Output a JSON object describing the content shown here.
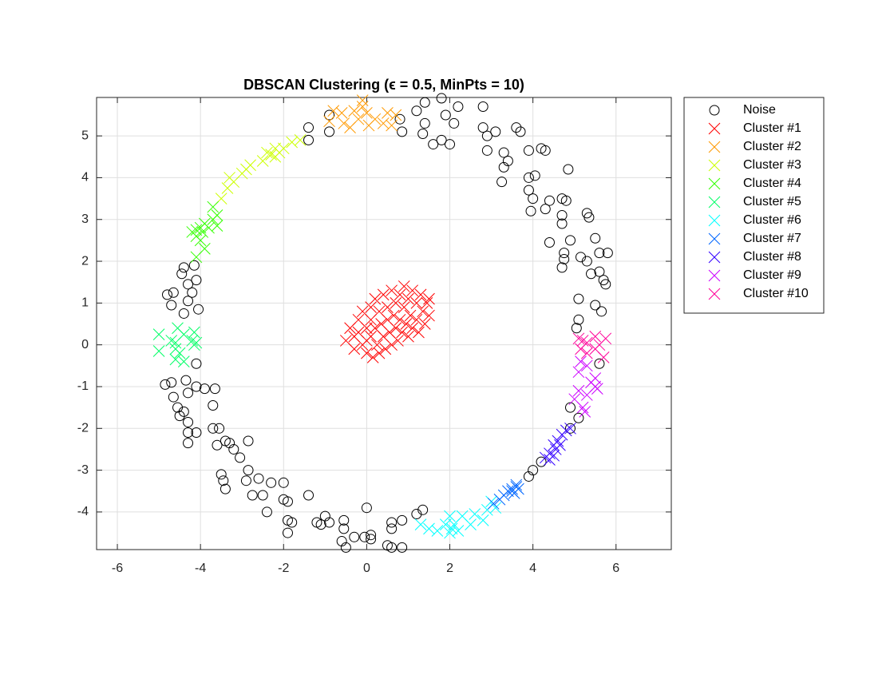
{
  "chart_data": {
    "type": "scatter",
    "title": "DBSCAN Clustering (ϵ = 0.5, MinPts = 10)",
    "xlim": [
      -6.5,
      7.33
    ],
    "ylim": [
      -4.9,
      5.92
    ],
    "xticks": [
      -6,
      -4,
      -2,
      0,
      2,
      4,
      6
    ],
    "yticks": [
      -4,
      -3,
      -2,
      -1,
      0,
      1,
      2,
      3,
      4,
      5
    ],
    "grid": true,
    "legend": "outside-right",
    "series": [
      {
        "name": "Noise",
        "color": "#000000",
        "marker": "o",
        "x": [
          -0.9,
          -0.9,
          -1.4,
          -1.4,
          0.8,
          0.85,
          1.2,
          1.4,
          1.4,
          1.35,
          1.6,
          1.8,
          1.9,
          1.8,
          2.0,
          2.1,
          2.2,
          2.8,
          2.8,
          2.9,
          2.9,
          3.1,
          3.3,
          3.4,
          3.3,
          3.25,
          3.6,
          3.7,
          3.9,
          4.2,
          4.3,
          3.9,
          4.05,
          3.9,
          4.0,
          3.95,
          4.3,
          4.4,
          4.4,
          4.7,
          4.8,
          4.7,
          4.7,
          4.85,
          4.9,
          4.75,
          4.75,
          4.7,
          5.3,
          5.35,
          5.5,
          5.6,
          5.15,
          5.3,
          5.8,
          5.4,
          5.6,
          5.7,
          5.75,
          5.1,
          5.5,
          5.65,
          5.1,
          5.05,
          5.6,
          4.9,
          5.1,
          4.9,
          4.2,
          4.0,
          3.9,
          1.2,
          1.35,
          0.6,
          0.6,
          0.5,
          0.6,
          0.85,
          0.85,
          0,
          -0.05,
          0.1,
          0.1,
          -0.3,
          -0.55,
          -0.6,
          -0.5,
          -0.55,
          -0.9,
          -1.0,
          -1.1,
          -1.2,
          -1.4,
          -1.8,
          -1.9,
          -1.9,
          -1.9,
          -2.0,
          -2.0,
          -2.3,
          -2.4,
          -2.5,
          -2.6,
          -2.75,
          -2.9,
          -2.85,
          -3.5,
          -3.45,
          -3.4,
          -3.05,
          -2.85,
          -3.2,
          -3.3,
          -3.4,
          -3.55,
          -3.6,
          -3.7,
          -3.7,
          -3.65,
          -3.9,
          -4.1,
          -4.35,
          -4.3,
          -4.5,
          -4.4,
          -4.3,
          -4.3,
          -4.1,
          -4.3,
          -4.55,
          -4.65,
          -4.7,
          -4.85,
          -4.1,
          -4.4,
          -4.45,
          -4.3,
          -4.2,
          -4.1,
          -4.3,
          -4.05,
          -4.4,
          -4.65,
          -4.8,
          -4.7,
          -4.15
        ],
        "values": [
          5.5,
          5.1,
          5.2,
          4.9,
          5.4,
          5.1,
          5.6,
          5.8,
          5.3,
          5.05,
          4.8,
          5.9,
          5.5,
          4.9,
          4.8,
          5.3,
          5.7,
          5.7,
          5.2,
          5.0,
          4.65,
          5.1,
          4.6,
          4.4,
          4.25,
          3.9,
          5.2,
          5.1,
          4.65,
          4.7,
          4.65,
          4.0,
          4.05,
          3.7,
          3.5,
          3.2,
          3.25,
          3.45,
          2.45,
          3.5,
          3.45,
          3.1,
          2.9,
          4.2,
          2.5,
          2.2,
          2.05,
          1.85,
          3.15,
          3.05,
          2.55,
          2.2,
          2.1,
          2.0,
          2.2,
          1.7,
          1.75,
          1.55,
          1.45,
          1.1,
          0.95,
          0.8,
          0.6,
          0.4,
          -0.45,
          -1.5,
          -1.75,
          -2.0,
          -2.8,
          -3.0,
          -3.15,
          -4.05,
          -3.95,
          -4.25,
          -4.4,
          -4.8,
          -4.85,
          -4.2,
          -4.85,
          -3.9,
          -4.6,
          -4.55,
          -4.65,
          -4.6,
          -4.4,
          -4.7,
          -4.85,
          -4.2,
          -4.25,
          -4.1,
          -4.3,
          -4.25,
          -3.6,
          -4.25,
          -4.5,
          -4.2,
          -3.75,
          -3.7,
          -3.3,
          -3.3,
          -4.0,
          -3.6,
          -3.2,
          -3.6,
          -3.25,
          -3.0,
          -3.1,
          -3.25,
          -3.45,
          -2.7,
          -2.3,
          -2.5,
          -2.35,
          -2.3,
          -2.0,
          -2.4,
          -2.0,
          -1.45,
          -1.05,
          -1.05,
          -1.0,
          -0.85,
          -1.15,
          -1.7,
          -1.6,
          -1.85,
          -2.1,
          -2.1,
          -2.35,
          -1.5,
          -1.25,
          -0.9,
          -0.95,
          -0.45,
          1.85,
          1.7,
          1.45,
          1.25,
          1.55,
          1.05,
          0.85,
          0.75,
          1.25,
          1.2,
          0.95,
          1.9
        ]
      },
      {
        "name": "Cluster #1",
        "color": "#ff0000",
        "marker": "x",
        "x": [
          -0.5,
          -0.4,
          -0.3,
          -0.3,
          -0.2,
          -0.2,
          -0.1,
          -0.1,
          0,
          0,
          0,
          0.1,
          0.1,
          0.1,
          0.15,
          0.2,
          0.2,
          0.25,
          0.3,
          0.3,
          0.35,
          0.4,
          0.4,
          0.45,
          0.5,
          0.5,
          0.55,
          0.6,
          0.6,
          0.65,
          0.7,
          0.7,
          0.75,
          0.8,
          0.8,
          0.85,
          0.9,
          0.9,
          0.95,
          1.0,
          1.0,
          1.05,
          1.1,
          1.1,
          1.2,
          1.2,
          1.25,
          1.3,
          1.35,
          1.4,
          1.45,
          1.5,
          1.5
        ],
        "values": [
          0.1,
          0.4,
          0.2,
          -0.1,
          0.6,
          0.3,
          0.0,
          0.8,
          0.4,
          0.1,
          -0.2,
          0.9,
          0.6,
          0.2,
          -0.3,
          1.1,
          0.4,
          0,
          0.8,
          -0.2,
          0.5,
          1.2,
          0.2,
          -0.1,
          0.9,
          0.6,
          0.3,
          1.3,
          0,
          0.7,
          1.0,
          0.4,
          0.1,
          1.2,
          0.6,
          0.3,
          1.4,
          0.9,
          0.5,
          1.1,
          0.2,
          0.7,
          1.3,
          0.4,
          1.0,
          0.6,
          0.3,
          1.2,
          0.8,
          0.5,
          1.0,
          0.7,
          1.1
        ]
      },
      {
        "name": "Cluster #2",
        "color": "#ff9900",
        "marker": "x",
        "x": [
          -0.9,
          -0.8,
          -0.6,
          -0.55,
          -0.4,
          -0.3,
          -0.2,
          -0.1,
          0,
          0.05,
          0.2,
          0.4,
          0.5,
          0.7,
          0.6,
          -0.1
        ],
        "values": [
          5.35,
          5.6,
          5.55,
          5.3,
          5.2,
          5.6,
          5.4,
          5.7,
          5.55,
          5.25,
          5.4,
          5.3,
          5.55,
          5.5,
          5.25,
          5.85
        ]
      },
      {
        "name": "Cluster #3",
        "color": "#ccff00",
        "marker": "x",
        "x": [
          -1.6,
          -1.8,
          -2.0,
          -2.1,
          -2.2,
          -2.3,
          -2.4,
          -2.5,
          -2.8,
          -2.9,
          -3.0,
          -3.2,
          -3.35,
          -3.5,
          -3.3,
          -2.2
        ],
        "values": [
          4.9,
          4.85,
          4.7,
          4.6,
          4.7,
          4.55,
          4.6,
          4.4,
          4.3,
          4.2,
          4.1,
          3.9,
          3.75,
          3.5,
          4.0,
          4.5
        ]
      },
      {
        "name": "Cluster #4",
        "color": "#33ff00",
        "marker": "x",
        "x": [
          -3.7,
          -3.6,
          -3.7,
          -3.6,
          -3.8,
          -3.9,
          -3.95,
          -4.0,
          -4.1,
          -4.1,
          -4.2,
          -4.0,
          -3.9,
          -4.1
        ],
        "values": [
          3.3,
          3.1,
          3.0,
          2.85,
          2.8,
          2.9,
          2.7,
          2.8,
          2.6,
          2.75,
          2.7,
          2.5,
          2.3,
          2.1
        ]
      },
      {
        "name": "Cluster #5",
        "color": "#00ff66",
        "marker": "x",
        "x": [
          -5.0,
          -5.0,
          -4.7,
          -4.6,
          -4.55,
          -4.5,
          -4.6,
          -4.4,
          -4.4,
          -4.2,
          -4.15,
          -4.15,
          -4.1,
          -4.6
        ],
        "values": [
          0.25,
          -0.15,
          0.1,
          0.05,
          0.4,
          -0.2,
          -0.35,
          -0.4,
          0.25,
          0.1,
          0.3,
          0,
          0.05,
          -0.1
        ]
      },
      {
        "name": "Cluster #6",
        "color": "#00ffff",
        "marker": "x",
        "x": [
          1.3,
          1.5,
          1.7,
          1.9,
          2.0,
          2.0,
          2.1,
          2.2,
          2.3,
          2.5,
          2.6,
          2.8,
          2.9,
          3.0,
          3.1,
          2.05
        ],
        "values": [
          -4.3,
          -4.4,
          -4.45,
          -4.3,
          -4.5,
          -4.1,
          -4.3,
          -4.45,
          -4.1,
          -4.3,
          -4.05,
          -4.2,
          -3.95,
          -3.75,
          -3.9,
          -4.4
        ]
      },
      {
        "name": "Cluster #7",
        "color": "#0066ff",
        "marker": "x",
        "x": [
          3.05,
          3.2,
          3.3,
          3.5,
          3.6,
          3.55,
          3.4,
          3.65,
          3.5,
          3.6
        ],
        "values": [
          -3.8,
          -3.7,
          -3.6,
          -3.5,
          -3.4,
          -3.55,
          -3.5,
          -3.45,
          -3.45,
          -3.35
        ]
      },
      {
        "name": "Cluster #8",
        "color": "#3300ff",
        "marker": "x",
        "x": [
          4.3,
          4.4,
          4.5,
          4.55,
          4.6,
          4.7,
          4.8,
          4.9,
          4.5,
          4.65,
          4.4
        ],
        "values": [
          -2.7,
          -2.6,
          -2.4,
          -2.5,
          -2.3,
          -2.15,
          -2.05,
          -2.0,
          -2.65,
          -2.4,
          -2.75
        ]
      },
      {
        "name": "Cluster #9",
        "color": "#cc00ff",
        "marker": "x",
        "x": [
          5.0,
          5.1,
          5.2,
          5.25,
          5.3,
          5.5,
          5.55,
          5.4,
          5.1,
          5.3,
          5.15,
          5.5
        ],
        "values": [
          -1.3,
          -1.1,
          -1.5,
          -1.6,
          -1.2,
          -1.0,
          -1.05,
          -0.9,
          -0.65,
          -0.5,
          -0.4,
          -0.8
        ]
      },
      {
        "name": "Cluster #10",
        "color": "#ff0099",
        "marker": "x",
        "x": [
          5.1,
          5.15,
          5.2,
          5.3,
          5.5,
          5.6,
          5.7,
          5.75,
          5.5,
          5.3
        ],
        "values": [
          0.15,
          -0.1,
          0.1,
          -0.2,
          0.2,
          0.0,
          -0.3,
          0.15,
          -0.1,
          0.05
        ]
      }
    ]
  }
}
